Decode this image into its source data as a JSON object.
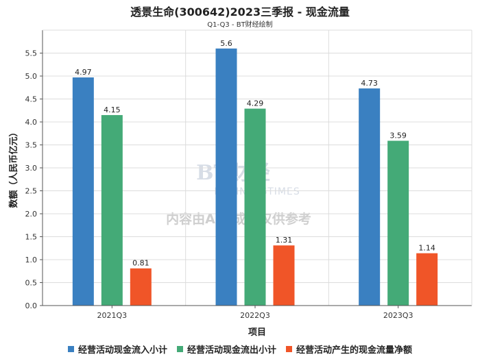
{
  "chart_data": {
    "type": "bar",
    "title": "透景生命(300642)2023三季报 - 现金流量",
    "subtitle": "Q1-Q3 - BT财经绘制",
    "xlabel": "项目",
    "ylabel": "数额（人民币亿元）",
    "ylim": [
      0,
      6.0
    ],
    "yticks": [
      "0.0",
      "0.5",
      "1.0",
      "1.5",
      "2.0",
      "2.5",
      "3.0",
      "3.5",
      "4.0",
      "4.5",
      "5.0",
      "5.5"
    ],
    "categories": [
      "2021Q3",
      "2022Q3",
      "2023Q3"
    ],
    "series": [
      {
        "name": "经营活动现金流入小计",
        "color": "#3a80c1",
        "values": [
          4.97,
          5.6,
          4.73
        ],
        "labels": [
          "4.97",
          "5.6",
          "4.73"
        ]
      },
      {
        "name": "经营活动现金流出小计",
        "color": "#44aa77",
        "values": [
          4.15,
          4.29,
          3.59
        ],
        "labels": [
          "4.15",
          "4.29",
          "3.59"
        ]
      },
      {
        "name": "经营活动产生的现金流量净额",
        "color": "#f05528",
        "values": [
          0.81,
          1.31,
          1.14
        ],
        "labels": [
          "0.81",
          "1.31",
          "1.14"
        ]
      }
    ],
    "grid": true,
    "legend_position": "bottom"
  },
  "watermark": {
    "brand": "BT财经",
    "brand_en": "BUSINESSTIMES",
    "notice": "内容由AI生成，仅供参考"
  }
}
